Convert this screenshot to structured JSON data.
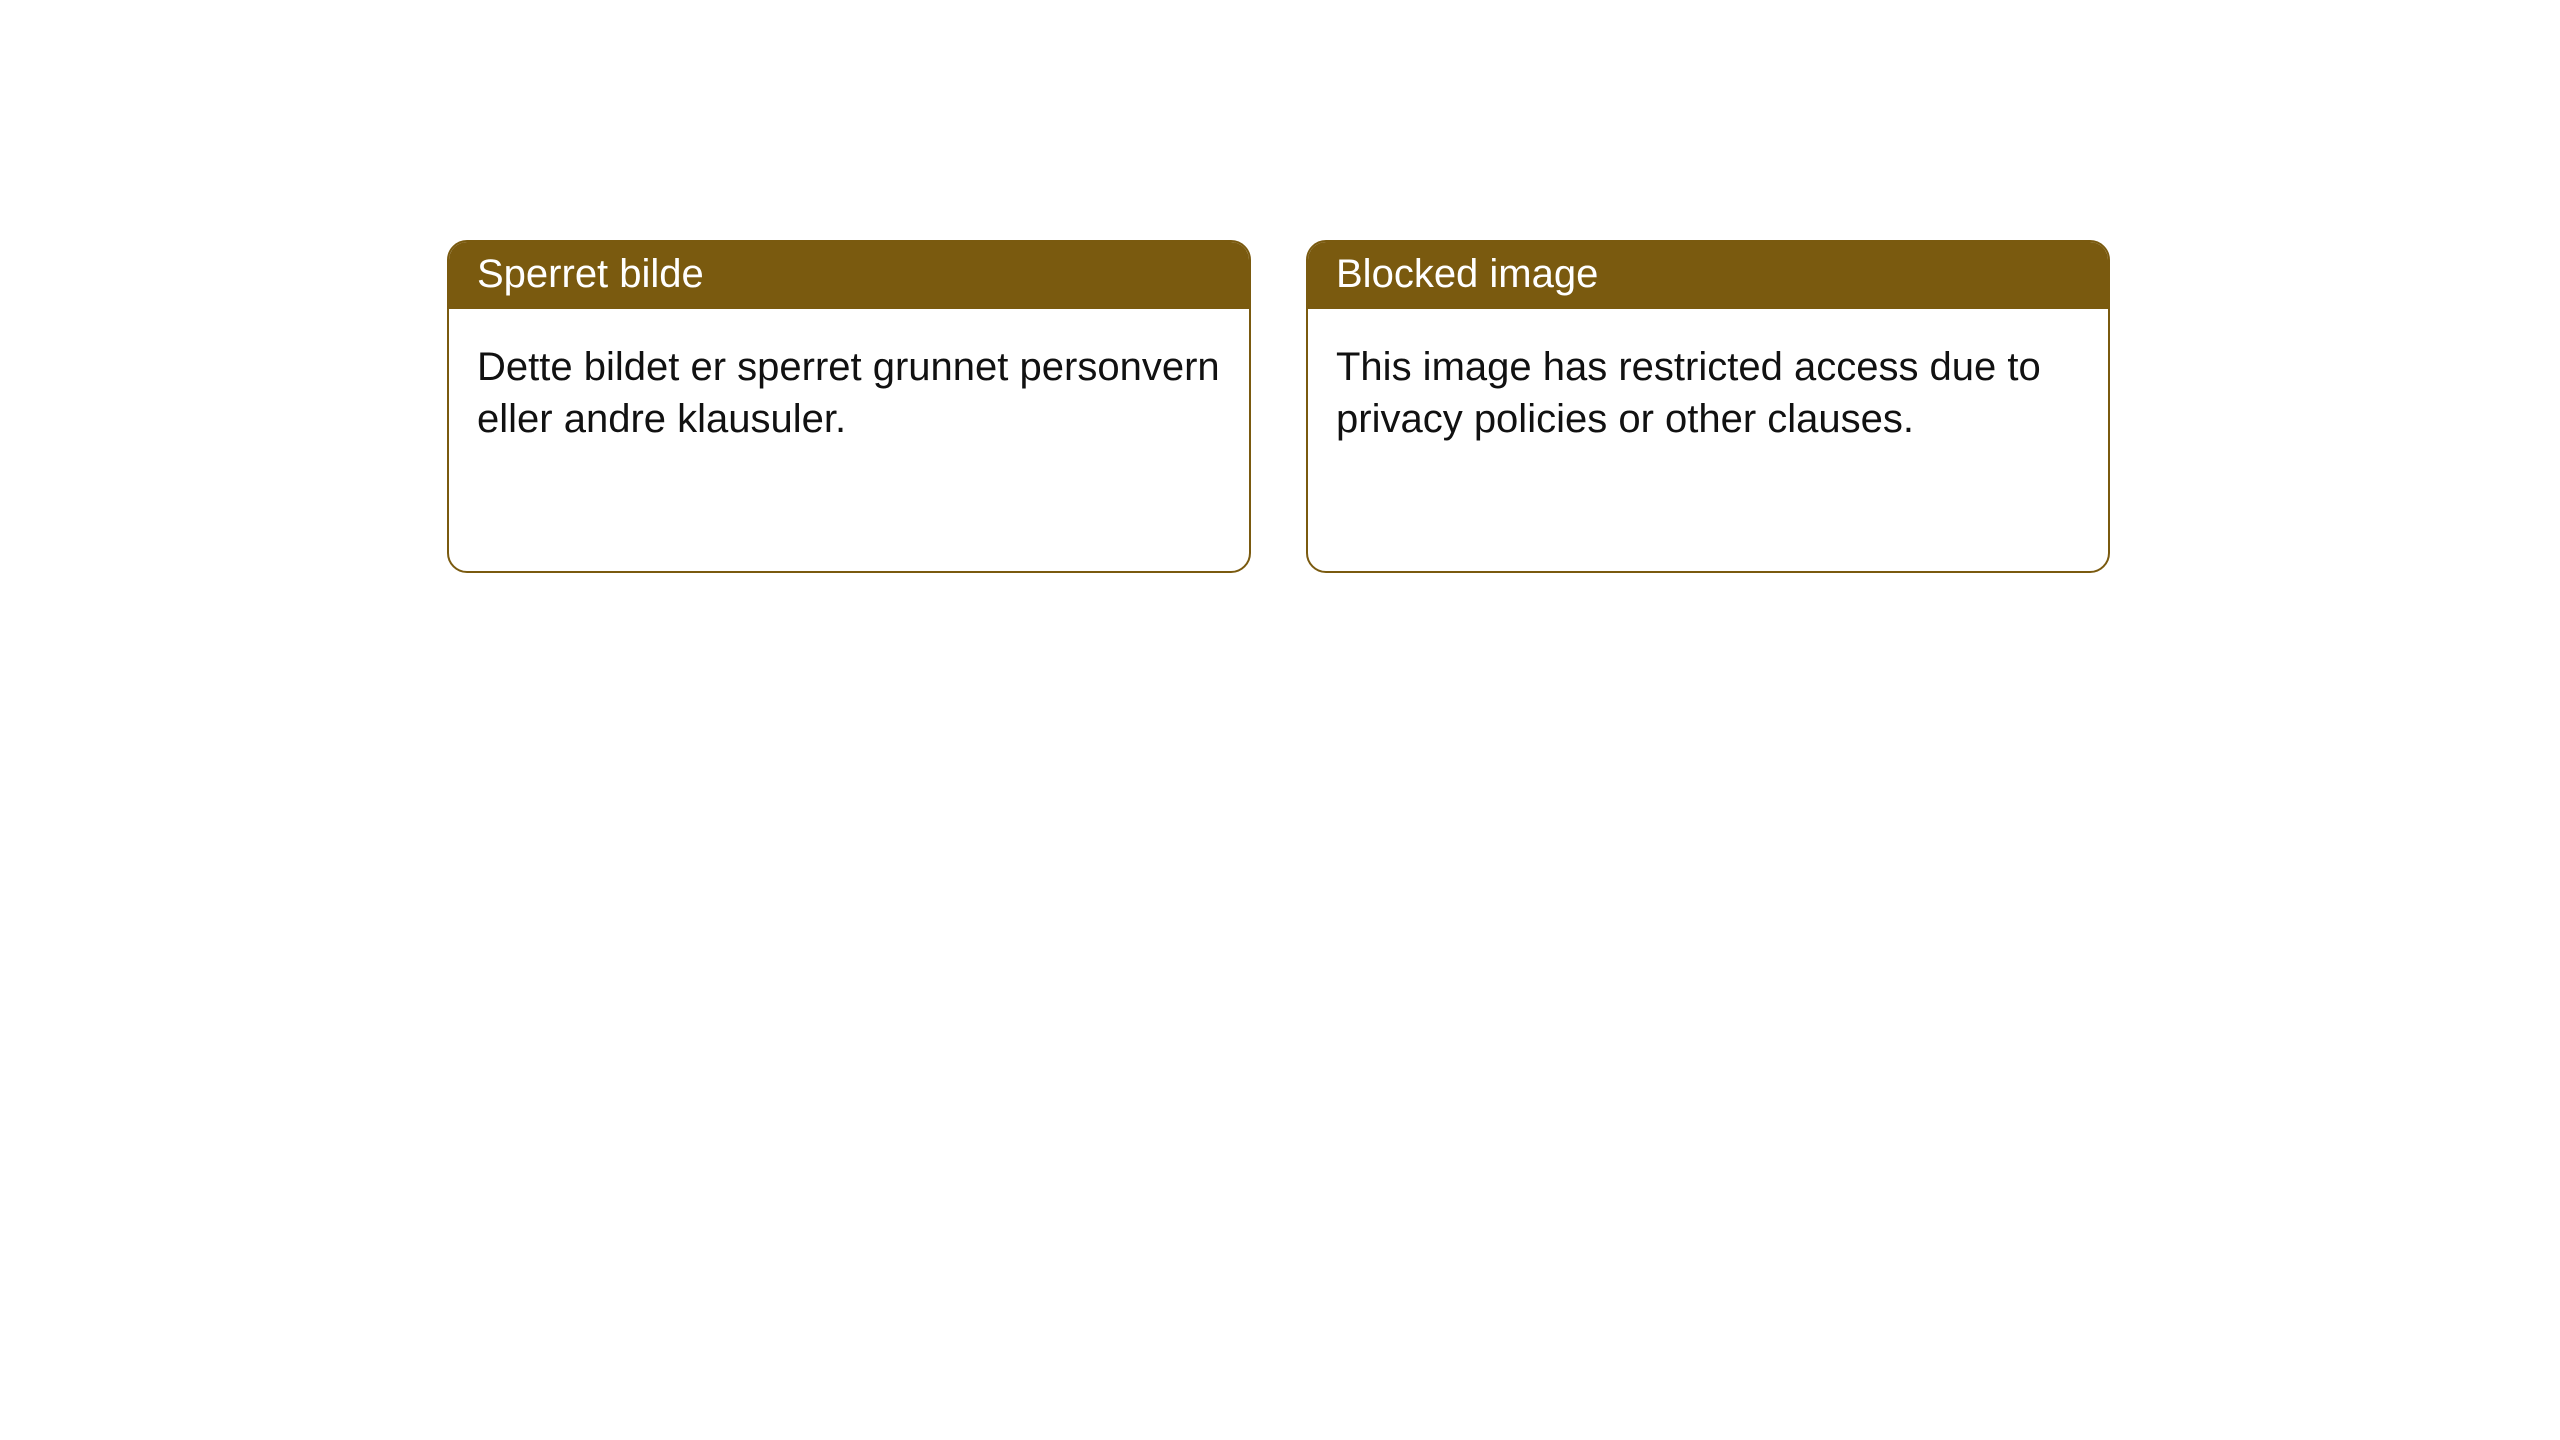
{
  "notices": [
    {
      "title": "Sperret bilde",
      "body": "Dette bildet er sperret grunnet personvern eller andre klausuler."
    },
    {
      "title": "Blocked image",
      "body": "This image has restricted access due to privacy policies or other clauses."
    }
  ],
  "styling": {
    "card_border_color": "#7a5a0f",
    "header_background_color": "#7a5a0f",
    "header_text_color": "#ffffff",
    "body_text_color": "#111111",
    "page_background_color": "#ffffff",
    "card_border_radius": 20,
    "title_fontsize": 40,
    "body_fontsize": 40
  }
}
